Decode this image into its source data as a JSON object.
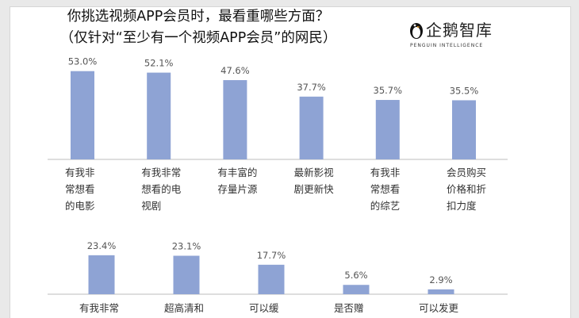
{
  "title": {
    "line1": "你挑选视频APP会员时，最看重哪些方面？",
    "line2": "（仅针对“至少有一个视频APP会员”的网民）"
  },
  "logo": {
    "name": "企鹅智库",
    "subtitle": "PENGUIN INTELLIGENCE"
  },
  "colors": {
    "bar": "#8ea3d4",
    "label": "#555555",
    "axis": "#bdbdbd"
  },
  "chart_data": [
    {
      "type": "bar",
      "categories": [
        "有我非常想看的电影",
        "有我非常想看的电视剧",
        "有丰富的存量片源",
        "最新影视剧更新快",
        "有我非常想看的综艺",
        "会员购买价格和折扣力度"
      ],
      "category_lines": [
        [
          "有我非",
          "常想看",
          "的电影"
        ],
        [
          "有我非常",
          "想看的电",
          "视剧"
        ],
        [
          "有丰富的",
          "存量片源"
        ],
        [
          "最新影视",
          "剧更新快"
        ],
        [
          "有我非",
          "常想看",
          "的综艺"
        ],
        [
          "会员购买",
          "价格和折",
          "扣力度"
        ]
      ],
      "values": [
        53.0,
        52.1,
        47.6,
        37.7,
        35.7,
        35.5
      ],
      "value_labels": [
        "53.0%",
        "52.1%",
        "47.6%",
        "37.7%",
        "35.7%",
        "35.5%"
      ],
      "unit": "%"
    },
    {
      "type": "bar",
      "categories": [
        "有我非常",
        "超高清和",
        "可以缓",
        "是否赠",
        "可以发更"
      ],
      "category_lines": [
        [
          "有我非常"
        ],
        [
          "超高清和"
        ],
        [
          "可以缓"
        ],
        [
          "是否赠"
        ],
        [
          "可以发更"
        ]
      ],
      "values": [
        23.4,
        23.1,
        17.7,
        5.6,
        2.9
      ],
      "value_labels": [
        "23.4%",
        "23.1%",
        "17.7%",
        "5.6%",
        "2.9%"
      ],
      "unit": "%"
    }
  ]
}
